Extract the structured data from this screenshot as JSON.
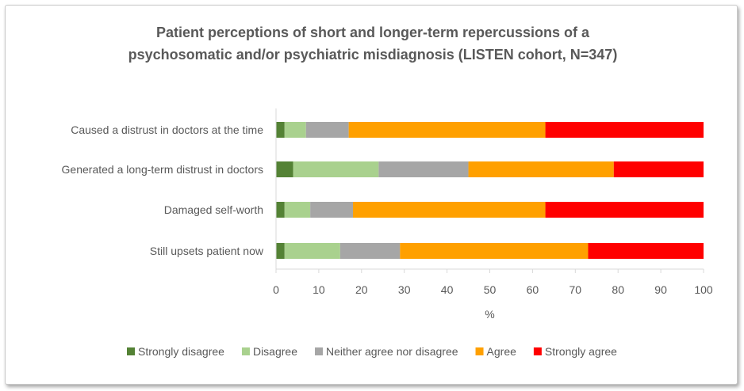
{
  "chart_data": {
    "type": "bar",
    "orientation": "horizontal",
    "stacked": true,
    "title_line1": "Patient perceptions of short and longer-term repercussions of a",
    "title_line2": "psychosomatic and/or psychiatric misdiagnosis (LISTEN cohort, N=347)",
    "categories": [
      "Caused a distrust in doctors at the time",
      "Generated a long-term distrust in doctors",
      "Damaged self-worth",
      "Still upsets patient now"
    ],
    "series": [
      {
        "name": "Strongly disagree",
        "color": "#548235",
        "values": [
          2,
          4,
          2,
          2
        ]
      },
      {
        "name": "Disagree",
        "color": "#a9d18e",
        "values": [
          5,
          20,
          6,
          13
        ]
      },
      {
        "name": "Neither agree nor disagree",
        "color": "#a6a6a6",
        "values": [
          10,
          21,
          10,
          14
        ]
      },
      {
        "name": "Agree",
        "color": "#ffa000",
        "values": [
          46,
          34,
          45,
          44
        ]
      },
      {
        "name": "Strongly agree",
        "color": "#ff0000",
        "values": [
          37,
          21,
          37,
          27
        ]
      }
    ],
    "xlabel": "%",
    "ylabel": "",
    "xlim": [
      0,
      100
    ],
    "xticks": [
      "0",
      "10",
      "20",
      "30",
      "40",
      "50",
      "60",
      "70",
      "80",
      "90",
      "100"
    ],
    "grid": false,
    "legend_position": "bottom"
  }
}
